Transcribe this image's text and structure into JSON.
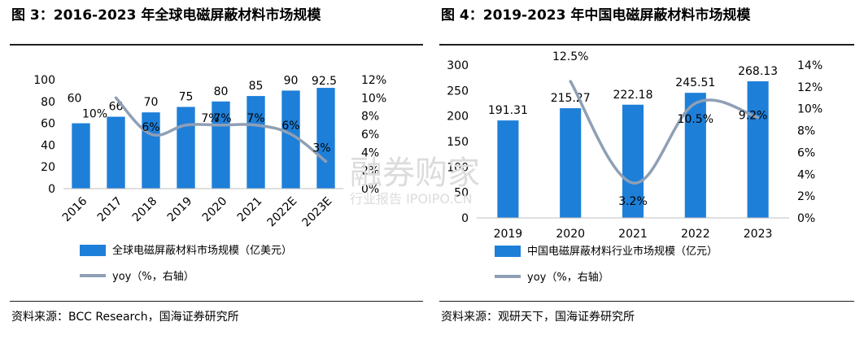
{
  "left": {
    "title": "图 3：2016-2023 年全球电磁屏蔽材料市场规模",
    "source": "资料来源：BCC Research，国海证券研究所",
    "chart_data": {
      "type": "bar",
      "categories": [
        "2016",
        "2017",
        "2018",
        "2019",
        "2020",
        "2021",
        "2022E",
        "2023E"
      ],
      "series": [
        {
          "name": "全球电磁屏蔽材料市场规模（亿美元）",
          "type": "bar",
          "values": [
            60,
            66,
            70,
            75,
            80,
            85,
            90,
            92.5
          ],
          "labels": [
            "60",
            "66",
            "70",
            "75",
            "80",
            "85",
            "90",
            "92.5"
          ]
        },
        {
          "name": "yoy（%，右轴）",
          "type": "line",
          "axis": "right",
          "values": [
            null,
            10,
            6,
            7,
            7,
            7,
            6,
            3
          ],
          "labels": [
            "",
            "10%",
            "6%",
            "7%",
            "7%",
            "7%",
            "6%",
            "3%"
          ]
        }
      ],
      "ylim": [
        0,
        100
      ],
      "yticks": [
        "0",
        "20",
        "40",
        "60",
        "80",
        "100"
      ],
      "y2lim": [
        0,
        12
      ],
      "y2ticks": [
        "0%",
        "2%",
        "4%",
        "6%",
        "8%",
        "10%",
        "12%"
      ],
      "bar_color": "#1e7fd8",
      "line_color": "#8f9fb5"
    }
  },
  "right": {
    "title": "图 4：2019-2023 年中国电磁屏蔽材料市场规模",
    "source": "资料来源：观研天下，国海证券研究所",
    "chart_data": {
      "type": "bar",
      "categories": [
        "2019",
        "2020",
        "2021",
        "2022",
        "2023"
      ],
      "series": [
        {
          "name": "中国电磁屏蔽材料行业市场规模（亿元）",
          "type": "bar",
          "values": [
            191.31,
            215.27,
            222.18,
            245.51,
            268.13
          ],
          "labels": [
            "191.31",
            "215.27",
            "222.18",
            "245.51",
            "268.13"
          ]
        },
        {
          "name": "yoy（%，右轴）",
          "type": "line",
          "axis": "right",
          "values": [
            null,
            12.5,
            3.2,
            10.5,
            9.2
          ],
          "labels": [
            "",
            "12.5%",
            "3.2%",
            "10.5%",
            "9.2%"
          ]
        }
      ],
      "ylim": [
        0,
        300
      ],
      "yticks": [
        "0",
        "50",
        "100",
        "150",
        "200",
        "250",
        "300"
      ],
      "y2lim": [
        0,
        14
      ],
      "y2ticks": [
        "0%",
        "2%",
        "4%",
        "6%",
        "8%",
        "10%",
        "12%",
        "14%"
      ],
      "bar_color": "#1e7fd8",
      "line_color": "#8f9fb5"
    }
  },
  "watermark": {
    "line1": "融券购家",
    "line2": "行业报告 IPOIPO.CN"
  }
}
